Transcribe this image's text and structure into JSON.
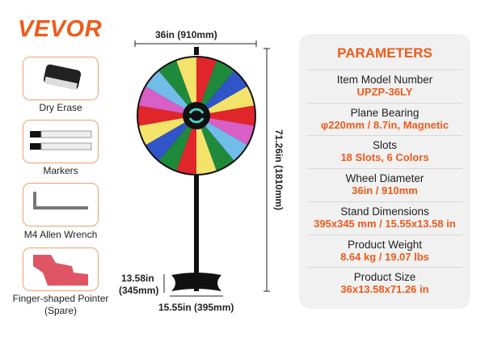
{
  "brand": "VEVOR",
  "accessories": [
    {
      "label": "Dry Erase",
      "icon": "eraser-icon"
    },
    {
      "label": "Markers",
      "icon": "markers-icon"
    },
    {
      "label": "M4 Allen Wrench",
      "icon": "allen-wrench-icon"
    },
    {
      "label": "Finger-shaped Pointer (Spare)",
      "icon": "pointer-icon"
    }
  ],
  "dimensions": {
    "width": "36in (910mm)",
    "height": "71.26in (1810mm)",
    "base_depth": "13.58in",
    "base_depth_mm": "(345mm)",
    "base_width": "15.55in (395mm)"
  },
  "wheel": {
    "slots": 18,
    "colors": [
      "#e0262b",
      "#1f8a3c",
      "#2f55c8",
      "#f3e36a",
      "#e0262b",
      "#d85fc6",
      "#6fbde8",
      "#1f8a3c",
      "#f3e36a"
    ]
  },
  "parameters": {
    "title": "PARAMETERS",
    "rows": [
      {
        "label": "Item Model Number",
        "value": "UPZP-36LY"
      },
      {
        "label": "Plane Bearing",
        "value": "φ220mm / 8.7in, Magnetic"
      },
      {
        "label": "Slots",
        "value": "18 Slots, 6 Colors"
      },
      {
        "label": "Wheel Diameter",
        "value": "36in / 910mm"
      },
      {
        "label": "Stand Dimensions",
        "value": "395x345 mm / 15.55x13.58 in"
      },
      {
        "label": "Product Weight",
        "value": "8.64 kg / 19.07 lbs"
      },
      {
        "label": "Product Size",
        "value": "36x13.58x71.26 in"
      }
    ]
  },
  "colors": {
    "accent": "#f05a1a"
  }
}
